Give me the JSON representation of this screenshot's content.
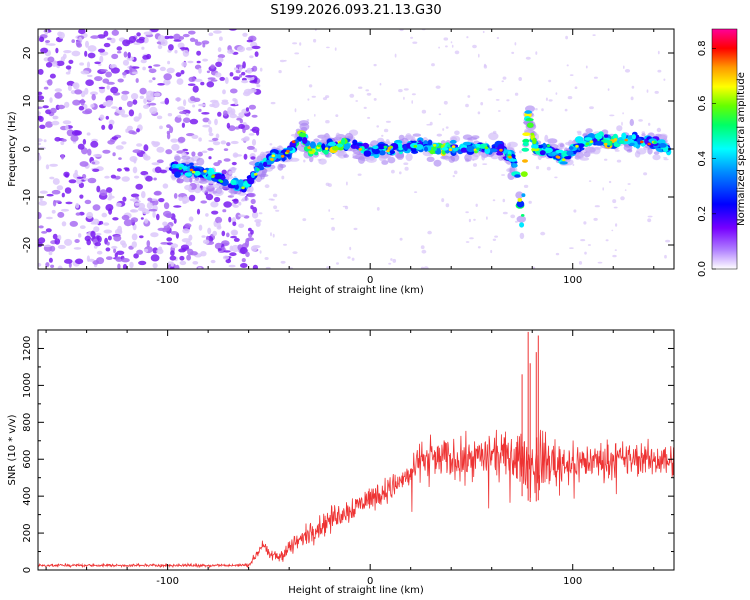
{
  "chart_data": [
    {
      "type": "heatmap",
      "title": "S199.2026.093.21.13.G30",
      "xlabel": "Height of straight line (km)",
      "ylabel": "Frequency (Hz)",
      "xlim": [
        -164,
        150
      ],
      "ylim": [
        -25,
        25
      ],
      "xticks": [
        -100,
        0,
        100
      ],
      "yticks": [
        -20,
        -10,
        0,
        10,
        20
      ],
      "colorbar": {
        "label": "Normalized spectral amplitude",
        "range": [
          0,
          0.87
        ],
        "ticks": [
          0.0,
          0.2,
          0.4,
          0.6,
          0.8
        ],
        "colormap": [
          "#ffffff",
          "#8800ff",
          "#0000ff",
          "#00ffff",
          "#00ff00",
          "#ffff00",
          "#ff8800",
          "#ff0000",
          "#ff00aa"
        ]
      },
      "ridge_track": {
        "x": [
          -98,
          -90,
          -82,
          -75,
          -68,
          -62,
          -55,
          -48,
          -40,
          -34,
          -30,
          -20,
          -10,
          0,
          10,
          20,
          30,
          40,
          50,
          60,
          66,
          70,
          73,
          74,
          75,
          76,
          77,
          78,
          80,
          82,
          88,
          95,
          100,
          110,
          120,
          130,
          140,
          148
        ],
        "y": [
          -4,
          -4.5,
          -5,
          -6,
          -7,
          -8,
          -4,
          -2,
          -0.5,
          3,
          0,
          0.5,
          1,
          -0.5,
          0,
          0.5,
          0.5,
          0,
          0,
          0.5,
          0,
          -2,
          -6,
          -11,
          -17,
          -6,
          3,
          8,
          3,
          0,
          0,
          -2,
          0,
          2,
          1.5,
          2,
          1.5,
          0
        ],
        "peak_x": [
          -30,
          -15,
          35,
          78,
          120
        ]
      },
      "noise_region_x": [
        -164,
        -55
      ]
    },
    {
      "type": "line",
      "xlabel": "Height of straight line (km)",
      "ylabel": "SNR (10 * v/v)",
      "xlim": [
        -164,
        150
      ],
      "ylim": [
        0,
        1300
      ],
      "xticks": [
        -100,
        0,
        100
      ],
      "yticks": [
        0,
        200,
        400,
        600,
        800,
        1000,
        1200
      ],
      "color": "#ee3333",
      "envelope": {
        "x": [
          -164,
          -60,
          -57,
          -53,
          -50,
          -45,
          -40,
          -30,
          -20,
          -10,
          0,
          10,
          20,
          24,
          26,
          40,
          60,
          75,
          80,
          85,
          100,
          120,
          150
        ],
        "mean": [
          25,
          25,
          70,
          140,
          80,
          70,
          120,
          200,
          270,
          330,
          390,
          440,
          520,
          590,
          610,
          600,
          620,
          600,
          560,
          590,
          580,
          600,
          600
        ],
        "spread": [
          8,
          10,
          25,
          35,
          30,
          40,
          60,
          70,
          80,
          80,
          80,
          80,
          90,
          100,
          110,
          120,
          130,
          160,
          200,
          180,
          120,
          110,
          100
        ]
      },
      "spikes": [
        {
          "x": 78,
          "y": 1290
        },
        {
          "x": 83,
          "y": 1270
        },
        {
          "x": 79,
          "y": 1120
        },
        {
          "x": 82,
          "y": 1180
        },
        {
          "x": 75,
          "y": 1060
        }
      ]
    }
  ]
}
